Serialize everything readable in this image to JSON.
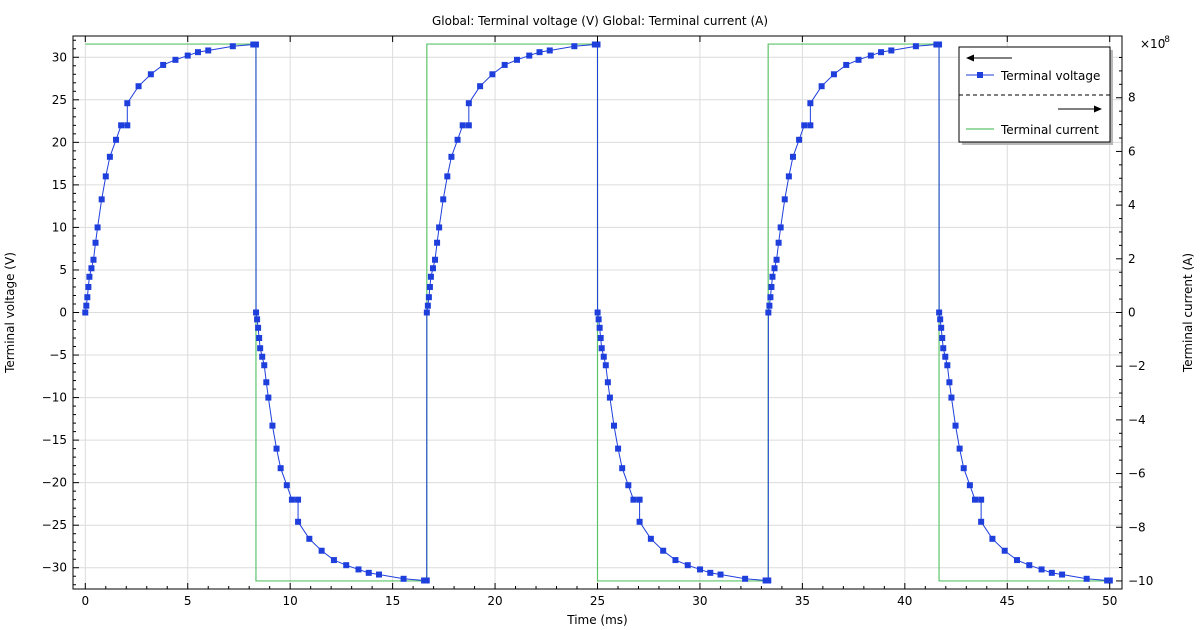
{
  "chart_data": {
    "type": "line",
    "title": "Global: Terminal voltage (V)  Global: Terminal current (A)",
    "xlabel": "Time (ms)",
    "ylabel": "Terminal voltage (V)",
    "y2label": "Terminal current (A)",
    "y2_multiplier": "×10",
    "y2_exponent": "-8",
    "xlim": [
      -0.6,
      50.6
    ],
    "ylim": [
      -32.5,
      32.5
    ],
    "y2lim": [
      -10.3,
      10.3
    ],
    "x_ticks": [
      0,
      5,
      10,
      15,
      20,
      25,
      30,
      35,
      40,
      45,
      50
    ],
    "y_ticks": [
      -30,
      -25,
      -20,
      -15,
      -10,
      -5,
      0,
      5,
      10,
      15,
      20,
      25,
      30
    ],
    "y2_ticks": [
      -10,
      -8,
      -6,
      -4,
      -2,
      0,
      2,
      4,
      6,
      8
    ],
    "grid": true,
    "legend_position": "top-right",
    "series": [
      {
        "name": "Terminal voltage",
        "axis": "left",
        "color": "#1f3fdc",
        "marker": "square",
        "x": [
          0,
          0.05,
          0.1,
          0.15,
          0.2,
          0.3,
          0.4,
          0.5,
          0.6,
          0.8,
          1.0,
          1.2,
          1.5,
          1.75,
          2.05,
          2.05,
          2.6,
          3.2,
          3.8,
          4.4,
          5.0,
          5.5,
          6.0,
          7.2,
          8.2,
          8.33
        ],
        "y": [
          0,
          0.8,
          1.8,
          3.0,
          4.2,
          5.2,
          6.2,
          8.2,
          10.0,
          13.3,
          16.0,
          18.3,
          20.3,
          22.0,
          22.0,
          24.6,
          26.6,
          28.0,
          29.1,
          29.7,
          30.2,
          30.6,
          30.8,
          31.3,
          31.5,
          31.5
        ],
        "period_ms": 16.67
      },
      {
        "name": "Terminal current",
        "axis": "right",
        "color": "#5cc46a",
        "marker": "none",
        "x": [
          0,
          8.33,
          8.33,
          16.67,
          16.67,
          25.0,
          25.0,
          33.33,
          33.33,
          41.67,
          41.67,
          50.0
        ],
        "y": [
          10,
          10,
          -10,
          -10,
          10,
          10,
          -10,
          -10,
          10,
          10,
          -10,
          -10
        ]
      }
    ]
  }
}
